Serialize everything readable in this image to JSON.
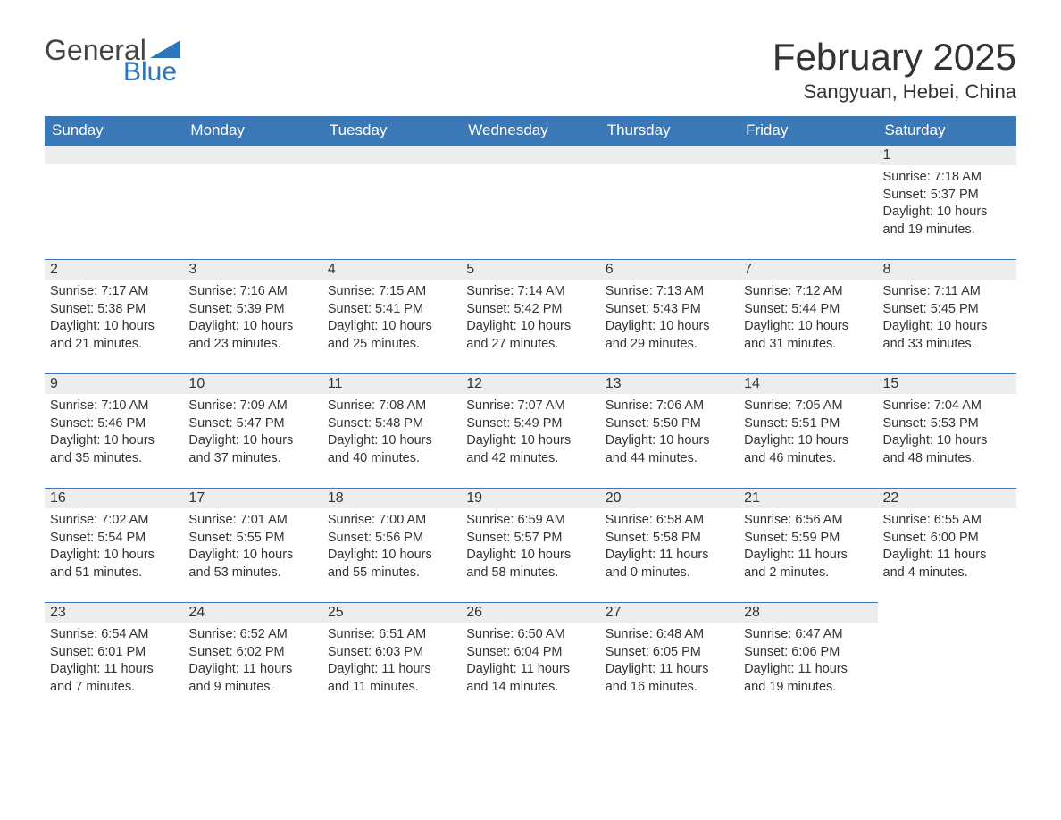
{
  "logo": {
    "word1": "General",
    "word2": "Blue"
  },
  "title": "February 2025",
  "location": "Sangyuan, Hebei, China",
  "colors": {
    "header_bg": "#3a78b7",
    "header_text": "#ffffff",
    "daynum_bg": "#ededed",
    "daynum_border": "#3a78b7",
    "body_text": "#333333",
    "logo_blue": "#2a75bb",
    "background": "#ffffff"
  },
  "day_headers": [
    "Sunday",
    "Monday",
    "Tuesday",
    "Wednesday",
    "Thursday",
    "Friday",
    "Saturday"
  ],
  "weeks": [
    [
      null,
      null,
      null,
      null,
      null,
      null,
      {
        "n": "1",
        "sunrise": "7:18 AM",
        "sunset": "5:37 PM",
        "daylight": "10 hours and 19 minutes."
      }
    ],
    [
      {
        "n": "2",
        "sunrise": "7:17 AM",
        "sunset": "5:38 PM",
        "daylight": "10 hours and 21 minutes."
      },
      {
        "n": "3",
        "sunrise": "7:16 AM",
        "sunset": "5:39 PM",
        "daylight": "10 hours and 23 minutes."
      },
      {
        "n": "4",
        "sunrise": "7:15 AM",
        "sunset": "5:41 PM",
        "daylight": "10 hours and 25 minutes."
      },
      {
        "n": "5",
        "sunrise": "7:14 AM",
        "sunset": "5:42 PM",
        "daylight": "10 hours and 27 minutes."
      },
      {
        "n": "6",
        "sunrise": "7:13 AM",
        "sunset": "5:43 PM",
        "daylight": "10 hours and 29 minutes."
      },
      {
        "n": "7",
        "sunrise": "7:12 AM",
        "sunset": "5:44 PM",
        "daylight": "10 hours and 31 minutes."
      },
      {
        "n": "8",
        "sunrise": "7:11 AM",
        "sunset": "5:45 PM",
        "daylight": "10 hours and 33 minutes."
      }
    ],
    [
      {
        "n": "9",
        "sunrise": "7:10 AM",
        "sunset": "5:46 PM",
        "daylight": "10 hours and 35 minutes."
      },
      {
        "n": "10",
        "sunrise": "7:09 AM",
        "sunset": "5:47 PM",
        "daylight": "10 hours and 37 minutes."
      },
      {
        "n": "11",
        "sunrise": "7:08 AM",
        "sunset": "5:48 PM",
        "daylight": "10 hours and 40 minutes."
      },
      {
        "n": "12",
        "sunrise": "7:07 AM",
        "sunset": "5:49 PM",
        "daylight": "10 hours and 42 minutes."
      },
      {
        "n": "13",
        "sunrise": "7:06 AM",
        "sunset": "5:50 PM",
        "daylight": "10 hours and 44 minutes."
      },
      {
        "n": "14",
        "sunrise": "7:05 AM",
        "sunset": "5:51 PM",
        "daylight": "10 hours and 46 minutes."
      },
      {
        "n": "15",
        "sunrise": "7:04 AM",
        "sunset": "5:53 PM",
        "daylight": "10 hours and 48 minutes."
      }
    ],
    [
      {
        "n": "16",
        "sunrise": "7:02 AM",
        "sunset": "5:54 PM",
        "daylight": "10 hours and 51 minutes."
      },
      {
        "n": "17",
        "sunrise": "7:01 AM",
        "sunset": "5:55 PM",
        "daylight": "10 hours and 53 minutes."
      },
      {
        "n": "18",
        "sunrise": "7:00 AM",
        "sunset": "5:56 PM",
        "daylight": "10 hours and 55 minutes."
      },
      {
        "n": "19",
        "sunrise": "6:59 AM",
        "sunset": "5:57 PM",
        "daylight": "10 hours and 58 minutes."
      },
      {
        "n": "20",
        "sunrise": "6:58 AM",
        "sunset": "5:58 PM",
        "daylight": "11 hours and 0 minutes."
      },
      {
        "n": "21",
        "sunrise": "6:56 AM",
        "sunset": "5:59 PM",
        "daylight": "11 hours and 2 minutes."
      },
      {
        "n": "22",
        "sunrise": "6:55 AM",
        "sunset": "6:00 PM",
        "daylight": "11 hours and 4 minutes."
      }
    ],
    [
      {
        "n": "23",
        "sunrise": "6:54 AM",
        "sunset": "6:01 PM",
        "daylight": "11 hours and 7 minutes."
      },
      {
        "n": "24",
        "sunrise": "6:52 AM",
        "sunset": "6:02 PM",
        "daylight": "11 hours and 9 minutes."
      },
      {
        "n": "25",
        "sunrise": "6:51 AM",
        "sunset": "6:03 PM",
        "daylight": "11 hours and 11 minutes."
      },
      {
        "n": "26",
        "sunrise": "6:50 AM",
        "sunset": "6:04 PM",
        "daylight": "11 hours and 14 minutes."
      },
      {
        "n": "27",
        "sunrise": "6:48 AM",
        "sunset": "6:05 PM",
        "daylight": "11 hours and 16 minutes."
      },
      {
        "n": "28",
        "sunrise": "6:47 AM",
        "sunset": "6:06 PM",
        "daylight": "11 hours and 19 minutes."
      },
      null
    ]
  ],
  "labels": {
    "sunrise": "Sunrise:",
    "sunset": "Sunset:",
    "daylight": "Daylight:"
  }
}
